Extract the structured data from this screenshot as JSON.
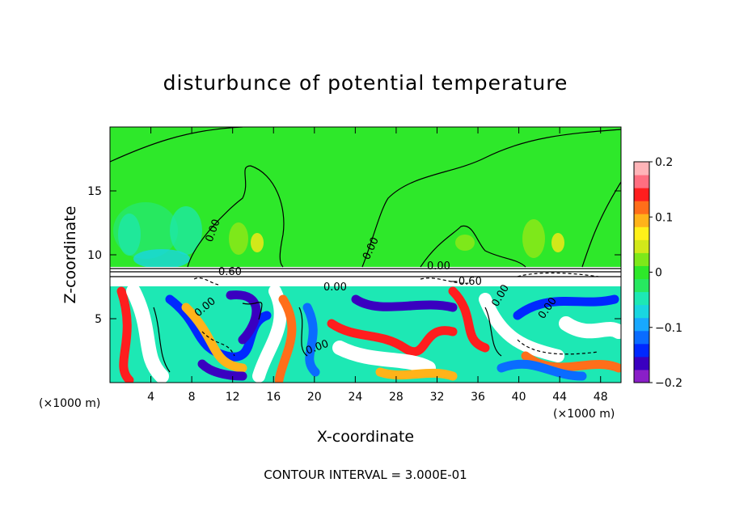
{
  "chart_data": {
    "type": "heatmap",
    "title": "disturbunce of potential temperature",
    "xlabel": "X-coordinate",
    "ylabel": "Z-coordinate",
    "x_unit": "(×1000 m)",
    "y_unit": "(×1000 m)",
    "xlim": [
      0,
      50
    ],
    "ylim": [
      0,
      20
    ],
    "x_ticks": [
      4,
      8,
      12,
      16,
      20,
      24,
      28,
      32,
      36,
      40,
      44,
      48
    ],
    "x_tick_labels": [
      "4",
      "8",
      "12",
      "16",
      "20",
      "24",
      "28",
      "32",
      "36",
      "40",
      "44",
      "48"
    ],
    "y_ticks": [
      5,
      10,
      15
    ],
    "y_tick_labels": [
      "5",
      "10",
      "15"
    ],
    "colorbar": {
      "range": [
        -0.2,
        0.2
      ],
      "ticks": [
        -0.2,
        -0.1,
        0,
        0.1,
        0.2
      ],
      "tick_labels": [
        "−0.2",
        "−0.1",
        "0",
        "0.1",
        "0.2"
      ],
      "colors": [
        "#8a1fc8",
        "#3a00c0",
        "#0028ff",
        "#0a6cff",
        "#18a8ff",
        "#19d6e0",
        "#1de8b4",
        "#27e860",
        "#2ee82a",
        "#7ee81a",
        "#d2e81a",
        "#fff01a",
        "#ffb31a",
        "#ff6e1a",
        "#ff1e1e",
        "#ff6e80",
        "#ffb4b8"
      ]
    },
    "contour_labels": [
      "0.00",
      "0.00",
      "0.60",
      "0.00",
      "0.00",
      "−0.60",
      "0.00",
      "0.00",
      "0.00",
      "0.00"
    ],
    "footer": "CONTOUR INTERVAL = 3.000E-01"
  }
}
